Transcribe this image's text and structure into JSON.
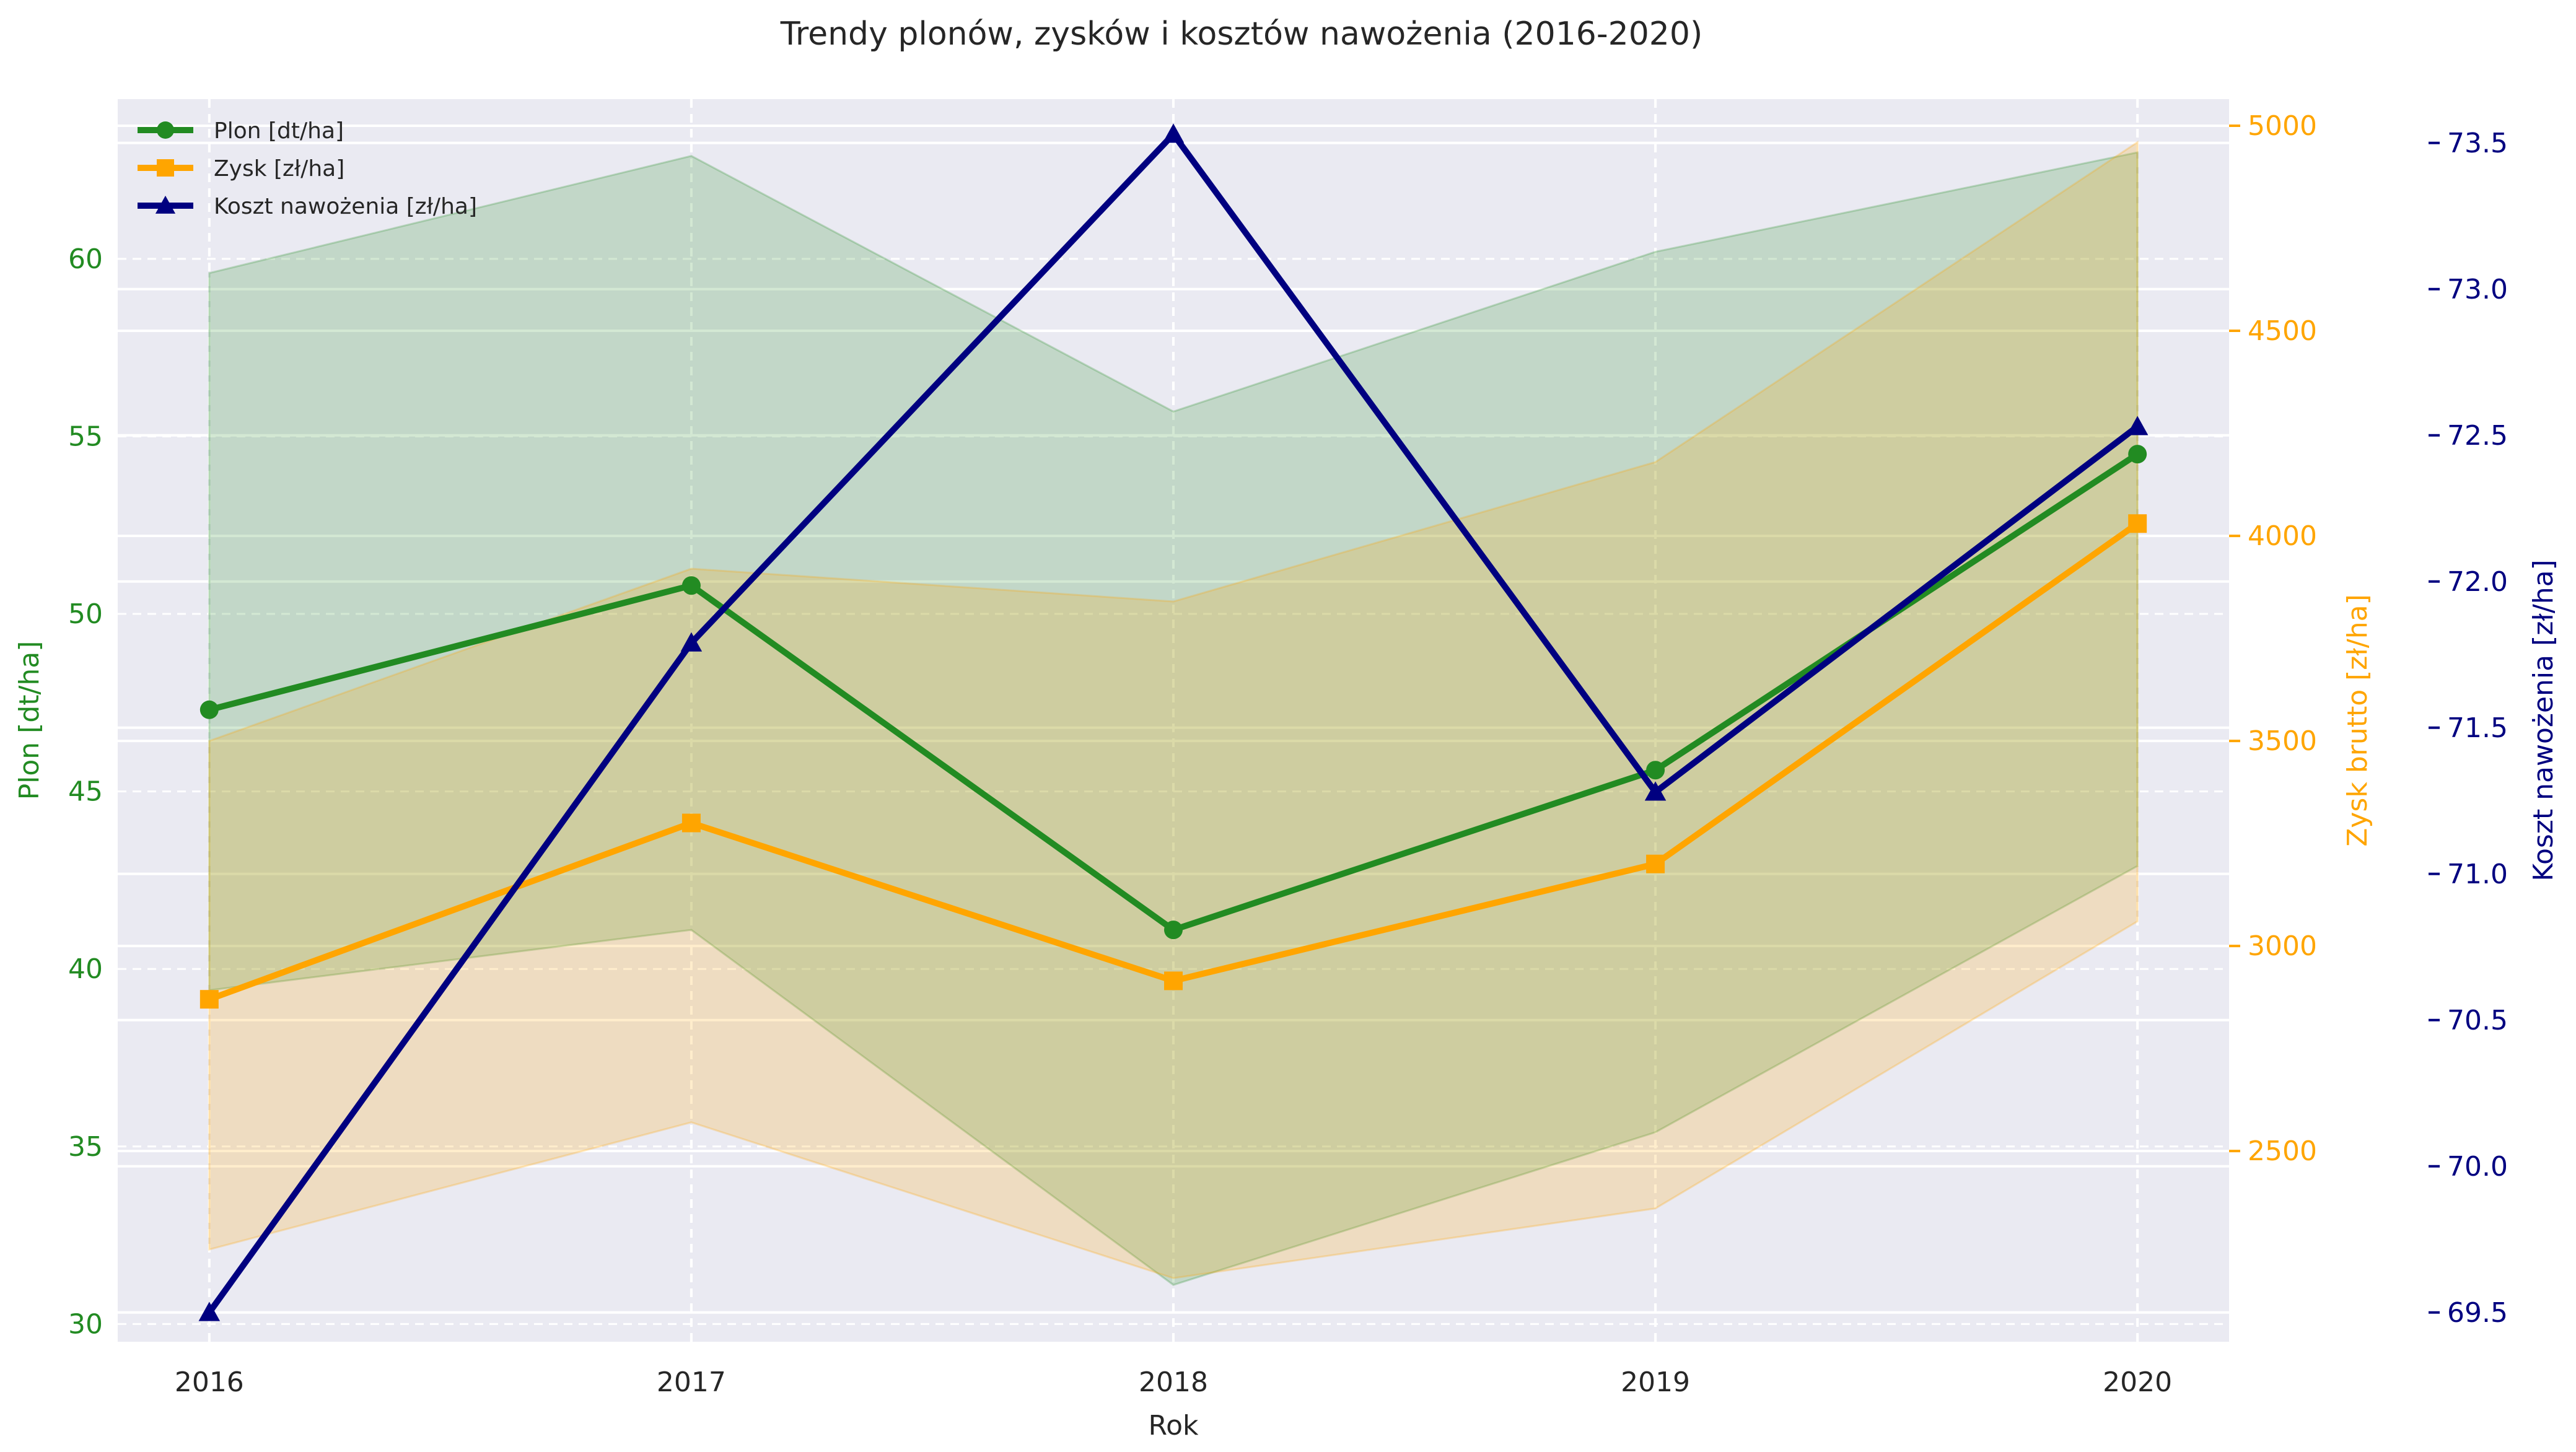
{
  "chart_data": {
    "type": "line",
    "title": "Trendy plonów, zysków i kosztów nawożenia (2016-2020)",
    "xlabel": "Rok",
    "x": [
      2016,
      2017,
      2018,
      2019,
      2020
    ],
    "x_tick_labels": [
      "2016",
      "2017",
      "2018",
      "2019",
      "2020"
    ],
    "grid": true,
    "legend_position": "top-left",
    "axes": {
      "left": {
        "label": "Plon [dt/ha]",
        "color": "#228B22",
        "ylim": [
          29.5,
          64.5
        ],
        "ticks": [
          30,
          35,
          40,
          45,
          50,
          55,
          60
        ],
        "tick_labels": [
          "30",
          "35",
          "40",
          "45",
          "50",
          "55",
          "60"
        ]
      },
      "right1": {
        "label": "Zysk brutto [zł/ha]",
        "color": "#FFA500",
        "ylim": [
          2035,
          5065
        ],
        "ticks": [
          2500,
          3000,
          3500,
          4000,
          4500,
          5000
        ],
        "tick_labels": [
          "2500",
          "3000",
          "3500",
          "4000",
          "4500",
          "5000"
        ]
      },
      "right2": {
        "label": "Koszt nawożenia [zł/ha]",
        "color": "#000080",
        "ylim": [
          69.4,
          73.65
        ],
        "ticks": [
          69.5,
          70.0,
          70.5,
          71.0,
          71.5,
          72.0,
          72.5,
          73.0,
          73.5
        ],
        "tick_labels": [
          "69.5",
          "70.0",
          "70.5",
          "71.0",
          "71.5",
          "72.0",
          "72.5",
          "73.0",
          "73.5"
        ]
      }
    },
    "series": [
      {
        "name": "Plon [dt/ha]",
        "axis": "left",
        "marker": "circle",
        "color": "#228B22",
        "values": [
          47.3,
          50.8,
          41.1,
          45.6,
          54.5
        ],
        "band_upper": [
          59.6,
          62.9,
          55.7,
          60.2,
          63.0
        ],
        "band_lower": [
          39.4,
          41.1,
          31.1,
          35.4,
          42.9
        ]
      },
      {
        "name": "Zysk [zł/ha]",
        "axis": "right1",
        "marker": "square",
        "color": "#FFA500",
        "values": [
          2870,
          3300,
          2915,
          3200,
          4030
        ],
        "band_upper": [
          3500,
          3920,
          3840,
          4180,
          4960
        ],
        "band_lower": [
          2260,
          2570,
          2190,
          2360,
          3060
        ]
      },
      {
        "name": "Koszt nawożenia [zł/ha]",
        "axis": "right2",
        "marker": "triangle",
        "color": "#000080",
        "values": [
          69.5,
          71.79,
          73.53,
          71.28,
          72.53
        ]
      }
    ]
  }
}
